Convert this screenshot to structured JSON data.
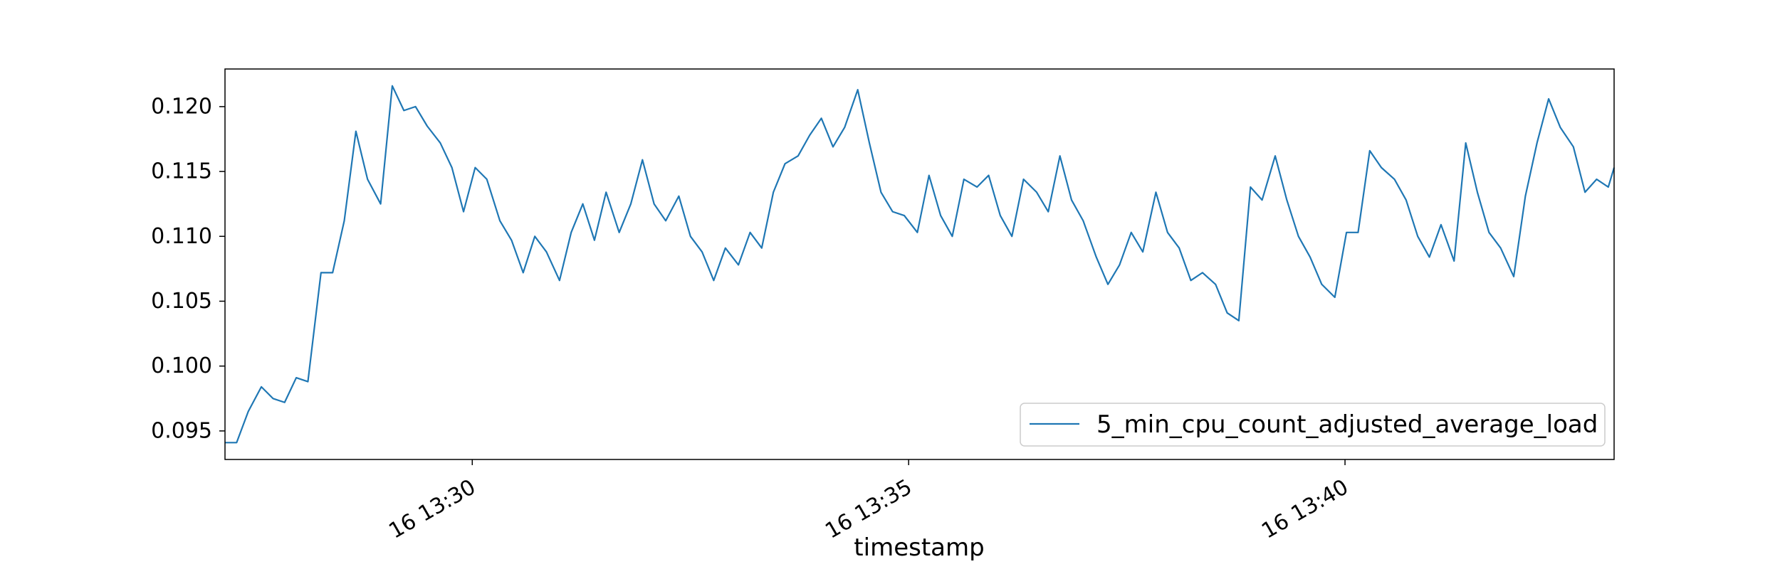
{
  "chart_data": {
    "type": "line",
    "title": "",
    "xlabel": "timestamp",
    "ylabel": "",
    "x_ticks": [
      "16 13:30",
      "16 13:35",
      "16 13:40"
    ],
    "y_ticks": [
      "0.095",
      "0.100",
      "0.105",
      "0.110",
      "0.115",
      "0.120"
    ],
    "xlim": [
      "13:27:10",
      "13:43:05"
    ],
    "ylim": [
      0.0928,
      0.1229
    ],
    "legend_position": "lower-right",
    "grid": false,
    "series": [
      {
        "name": "5_min_cpu_count_adjusted_average_load",
        "color": "#1f77b4",
        "x": [
          "13:27:10",
          "13:27:18",
          "13:27:26",
          "13:27:35",
          "13:27:43",
          "13:27:51",
          "13:27:59",
          "13:28:07",
          "13:28:16",
          "13:28:24",
          "13:28:32",
          "13:28:40",
          "13:28:48",
          "13:28:57",
          "13:29:05",
          "13:29:13",
          "13:29:21",
          "13:29:29",
          "13:29:38",
          "13:29:46",
          "13:29:54",
          "13:30:02",
          "13:30:10",
          "13:30:19",
          "13:30:27",
          "13:30:35",
          "13:30:43",
          "13:30:51",
          "13:31:00",
          "13:31:08",
          "13:31:16",
          "13:31:24",
          "13:31:32",
          "13:31:41",
          "13:31:49",
          "13:31:57",
          "13:32:05",
          "13:32:13",
          "13:32:22",
          "13:32:30",
          "13:32:38",
          "13:32:46",
          "13:32:54",
          "13:33:03",
          "13:33:11",
          "13:33:19",
          "13:33:27",
          "13:33:35",
          "13:33:44",
          "13:33:52",
          "13:34:00",
          "13:34:08",
          "13:34:16",
          "13:34:25",
          "13:34:33",
          "13:34:41",
          "13:34:49",
          "13:34:57",
          "13:35:06",
          "13:35:14",
          "13:35:22",
          "13:35:30",
          "13:35:38",
          "13:35:47",
          "13:35:55",
          "13:36:03",
          "13:36:11",
          "13:36:19",
          "13:36:28",
          "13:36:36",
          "13:36:44",
          "13:36:52",
          "13:37:00",
          "13:37:09",
          "13:37:17",
          "13:37:25",
          "13:37:33",
          "13:37:41",
          "13:37:50",
          "13:37:58",
          "13:38:06",
          "13:38:14",
          "13:38:22",
          "13:38:31",
          "13:38:39",
          "13:38:47",
          "13:38:55",
          "13:39:03",
          "13:39:12",
          "13:39:20",
          "13:39:28",
          "13:39:36",
          "13:39:44",
          "13:39:53",
          "13:40:01",
          "13:40:09",
          "13:40:17",
          "13:40:25",
          "13:40:34",
          "13:40:42",
          "13:40:50",
          "13:40:58",
          "13:41:06",
          "13:41:15",
          "13:41:23",
          "13:41:31",
          "13:41:39",
          "13:41:47",
          "13:41:56",
          "13:42:04",
          "13:42:12",
          "13:42:20",
          "13:42:28",
          "13:42:37",
          "13:42:45",
          "13:42:53",
          "13:43:01",
          "13:43:05"
        ],
        "values": [
          0.0941,
          0.0941,
          0.0965,
          0.0984,
          0.0975,
          0.0972,
          0.0991,
          0.0988,
          0.1072,
          0.1072,
          0.1112,
          0.1181,
          0.1144,
          0.1125,
          0.1216,
          0.1197,
          0.12,
          0.1185,
          0.1172,
          0.1153,
          0.1119,
          0.1153,
          0.1144,
          0.1112,
          0.1097,
          0.1072,
          0.11,
          0.1088,
          0.1066,
          0.1103,
          0.1125,
          0.1097,
          0.1134,
          0.1103,
          0.1125,
          0.1159,
          0.1125,
          0.1112,
          0.1131,
          0.11,
          0.1088,
          0.1066,
          0.1091,
          0.1078,
          0.1103,
          0.1091,
          0.1134,
          0.1156,
          0.1162,
          0.1178,
          0.1191,
          0.1169,
          0.1184,
          0.1213,
          0.1172,
          0.1134,
          0.1119,
          0.1116,
          0.1103,
          0.1147,
          0.1116,
          0.11,
          0.1144,
          0.1138,
          0.1147,
          0.1116,
          0.11,
          0.1144,
          0.1134,
          0.1119,
          0.1162,
          0.1128,
          0.1112,
          0.1084,
          0.1063,
          0.1078,
          0.1103,
          0.1088,
          0.1134,
          0.1103,
          0.1091,
          0.1066,
          0.1072,
          0.1063,
          0.1041,
          0.1035,
          0.1138,
          0.1128,
          0.1162,
          0.1128,
          0.11,
          0.1084,
          0.1063,
          0.1053,
          0.1103,
          0.1103,
          0.1166,
          0.1153,
          0.1144,
          0.1128,
          0.11,
          0.1084,
          0.1109,
          0.1081,
          0.1172,
          0.1134,
          0.1103,
          0.1091,
          0.1069,
          0.1131,
          0.1172,
          0.1206,
          0.1184,
          0.1169,
          0.1134,
          0.1144,
          0.1138,
          0.1153
        ]
      }
    ]
  }
}
